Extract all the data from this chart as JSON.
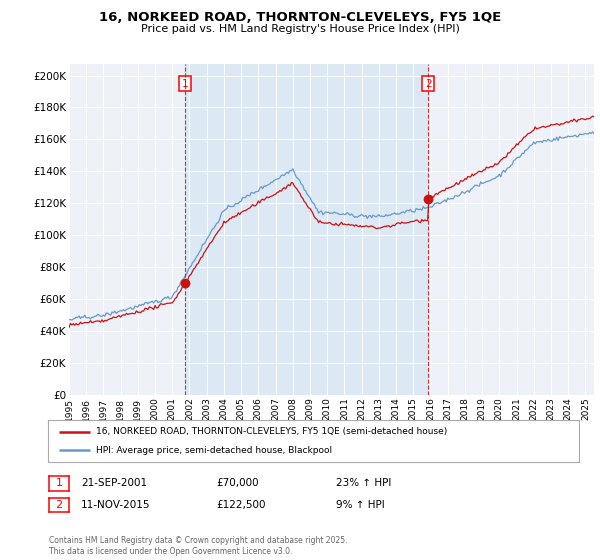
{
  "title": "16, NORKEED ROAD, THORNTON-CLEVELEYS, FY5 1QE",
  "subtitle": "Price paid vs. HM Land Registry's House Price Index (HPI)",
  "ylabel_ticks": [
    "£0",
    "£20K",
    "£40K",
    "£60K",
    "£80K",
    "£100K",
    "£120K",
    "£140K",
    "£160K",
    "£180K",
    "£200K"
  ],
  "ytick_values": [
    0,
    20000,
    40000,
    60000,
    80000,
    100000,
    120000,
    140000,
    160000,
    180000,
    200000
  ],
  "ylim": [
    0,
    207000
  ],
  "year_start": 1995,
  "year_end": 2025,
  "sale1_year": 2001.72,
  "sale1_price": 70000,
  "sale2_year": 2015.86,
  "sale2_price": 122500,
  "line_color_price": "#cc1111",
  "line_color_hpi": "#6699cc",
  "vline_color": "#cc1111",
  "highlight_color": "#dde8f5",
  "legend_label1": "16, NORKEED ROAD, THORNTON-CLEVELEYS, FY5 1QE (semi-detached house)",
  "legend_label2": "HPI: Average price, semi-detached house, Blackpool",
  "annotation1_label": "1",
  "annotation2_label": "2",
  "annotation1_date": "21-SEP-2001",
  "annotation1_price": "£70,000",
  "annotation1_hpi": "23% ↑ HPI",
  "annotation2_date": "11-NOV-2015",
  "annotation2_price": "£122,500",
  "annotation2_hpi": "9% ↑ HPI",
  "footer": "Contains HM Land Registry data © Crown copyright and database right 2025.\nThis data is licensed under the Open Government Licence v3.0.",
  "bg_color": "#ffffff",
  "plot_bg_color": "#eef2f8"
}
